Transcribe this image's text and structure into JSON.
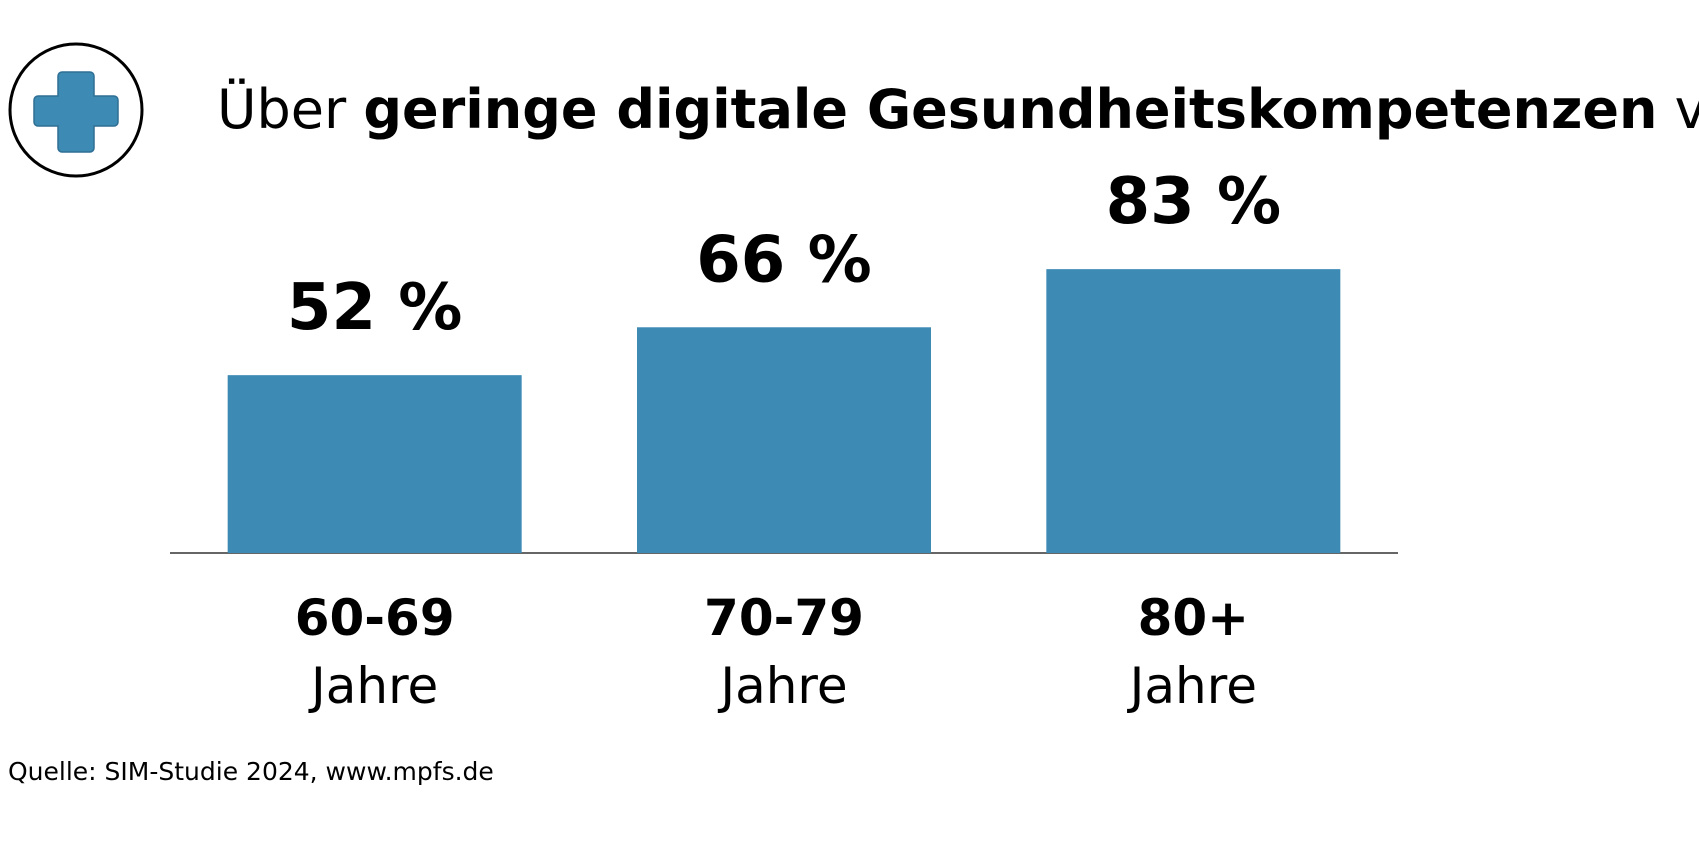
{
  "chart_data": {
    "type": "bar",
    "title_parts": [
      "Über ",
      "geringe digitale Gesundheitskompetenzen",
      " verfügen"
    ],
    "categories": [
      "60-69",
      "70-79",
      "80+"
    ],
    "category_suffix": "Jahre",
    "values": [
      52,
      66,
      83
    ],
    "value_labels": [
      "52 %",
      "66 %",
      "83 %"
    ],
    "color": "#3d8ab5",
    "ylim": [
      0,
      100
    ],
    "source": "Quelle: SIM-Studie 2024, www.mpfs.de"
  }
}
